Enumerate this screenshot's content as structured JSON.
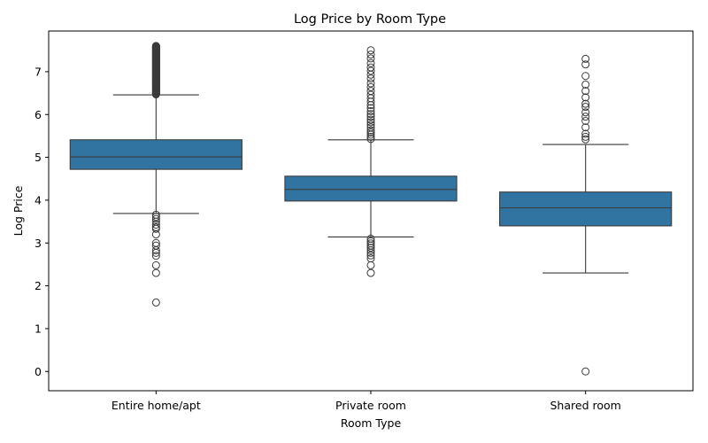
{
  "chart_data": {
    "type": "box",
    "title": "Log Price by Room Type",
    "xlabel": "Room Type",
    "ylabel": "Log Price",
    "ylim": [
      -0.45,
      7.95
    ],
    "yticks": [
      0,
      1,
      2,
      3,
      4,
      5,
      6,
      7
    ],
    "grid": false,
    "legend": "none",
    "box_color": "#3274a1",
    "line_color": "#3a3a3a",
    "categories": [
      "Entire home/apt",
      "Private room",
      "Shared room"
    ],
    "boxes": [
      {
        "category": "Entire home/apt",
        "whisker_low": 3.69,
        "q1": 4.72,
        "median": 5.01,
        "q3": 5.41,
        "whisker_high": 6.46,
        "outliers_low": [
          3.66,
          3.61,
          3.56,
          3.5,
          3.43,
          3.37,
          3.33,
          3.2,
          3.0,
          2.94,
          2.83,
          2.77,
          2.7,
          2.48,
          2.3,
          1.61
        ],
        "outliers_high_range": [
          6.47,
          7.6
        ],
        "outliers_high": [
          6.5,
          6.55,
          6.6,
          6.65,
          6.7,
          6.75,
          6.8,
          6.85,
          6.9,
          6.95,
          7.0,
          7.05,
          7.1,
          7.15,
          7.2,
          7.25,
          7.3,
          7.35,
          7.4,
          7.45,
          7.5,
          7.55,
          7.6
        ]
      },
      {
        "category": "Private room",
        "whisker_low": 3.14,
        "q1": 3.98,
        "median": 4.25,
        "q3": 4.56,
        "whisker_high": 5.41,
        "outliers_low": [
          3.1,
          3.04,
          2.99,
          2.94,
          2.89,
          2.83,
          2.77,
          2.71,
          2.64,
          2.48,
          2.3
        ],
        "outliers_high": [
          5.43,
          5.48,
          5.53,
          5.58,
          5.63,
          5.7,
          5.76,
          5.82,
          5.88,
          5.95,
          6.01,
          6.08,
          6.15,
          6.22,
          6.3,
          6.38,
          6.46,
          6.55,
          6.64,
          6.73,
          6.84,
          6.93,
          7.02,
          7.1,
          7.2,
          7.31,
          7.4,
          7.5
        ]
      },
      {
        "category": "Shared room",
        "whisker_low": 2.3,
        "q1": 3.4,
        "median": 3.82,
        "q3": 4.19,
        "whisker_high": 5.3,
        "outliers_low": [
          0.0
        ],
        "outliers_high": [
          5.42,
          5.48,
          5.55,
          5.7,
          5.85,
          5.95,
          6.05,
          6.18,
          6.25,
          6.4,
          6.55,
          6.7,
          6.9,
          7.17,
          7.3
        ]
      }
    ]
  }
}
